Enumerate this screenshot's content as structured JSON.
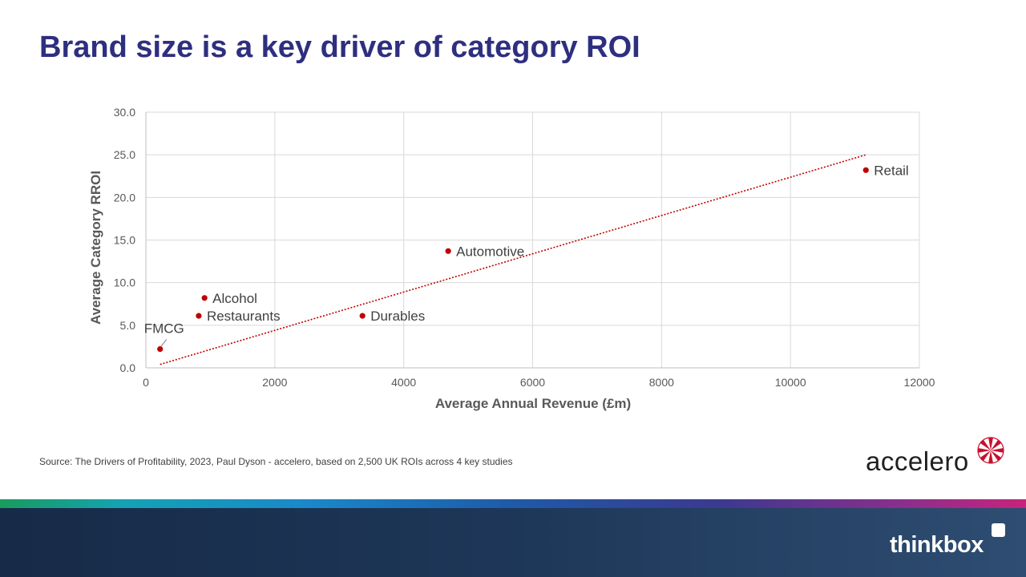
{
  "slide": {
    "title": "Brand size is a key driver of category ROI",
    "source": "Source: The  Drivers  of Profitability, 2023, Paul Dyson - accelero, based on 2,500 UK ROIs across 4 key studies"
  },
  "logos": {
    "accelero": "accelero",
    "thinkbox": "thinkbox"
  },
  "colors": {
    "title": "#2e2f7f",
    "point": "#c00000",
    "trendline": "#c00000",
    "grid": "#d9d9d9",
    "footer": "#1e3758"
  },
  "chart_data": {
    "type": "scatter",
    "xlabel": "Average Annual Revenue (£m)",
    "ylabel": "Average Category RROI",
    "xlim": [
      0,
      12000
    ],
    "ylim": [
      0,
      30
    ],
    "xticks": [
      0,
      2000,
      4000,
      6000,
      8000,
      10000,
      12000
    ],
    "yticks": [
      0,
      5,
      10,
      15,
      20,
      25,
      30
    ],
    "ytick_labels": [
      "0.0",
      "5.0",
      "10.0",
      "15.0",
      "20.0",
      "25.0",
      "30.0"
    ],
    "grid": true,
    "points": [
      {
        "label": "FMCG",
        "x": 220,
        "y": 2.2
      },
      {
        "label": "Restaurants",
        "x": 820,
        "y": 6.1
      },
      {
        "label": "Alcohol",
        "x": 910,
        "y": 8.2
      },
      {
        "label": "Durables",
        "x": 3360,
        "y": 6.1
      },
      {
        "label": "Automotive",
        "x": 4690,
        "y": 13.7
      },
      {
        "label": "Retail",
        "x": 11170,
        "y": 23.2
      }
    ],
    "trendline": {
      "style": "dotted",
      "x": [
        220,
        11170
      ],
      "y": [
        0.4,
        25.0
      ]
    }
  }
}
